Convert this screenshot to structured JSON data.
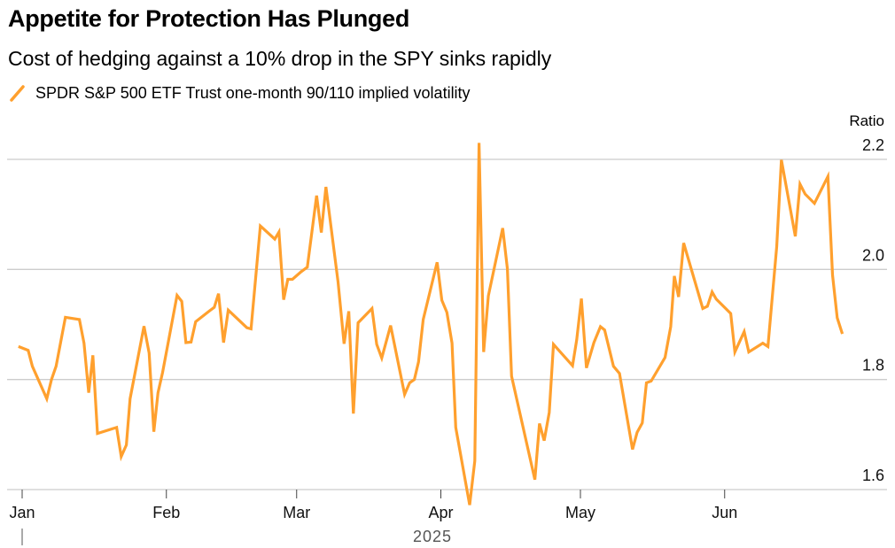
{
  "header": {
    "title": "Appetite for Protection Has Plunged",
    "subtitle": "Cost of hedging against a 10% drop in the SPY sinks rapidly"
  },
  "chart_data": {
    "type": "line",
    "title": "Appetite for Protection Has Plunged",
    "subtitle": "Cost of hedging against a 10% drop in the SPY sinks rapidly",
    "ylabel": "Ratio",
    "xlabel": "2025",
    "ylim": [
      1.6,
      2.2
    ],
    "yticks": [
      1.6,
      1.8,
      2.0,
      2.2
    ],
    "ytick_labels": [
      "1.6",
      "1.8",
      "2.0",
      "2.2"
    ],
    "x_unit": "day of year 2025 (0 = Jan 1)",
    "xticks": [
      {
        "day": 0,
        "label": "Jan"
      },
      {
        "day": 31,
        "label": "Feb"
      },
      {
        "day": 59,
        "label": "Mar"
      },
      {
        "day": 90,
        "label": "Apr"
      },
      {
        "day": 120,
        "label": "May"
      },
      {
        "day": 151,
        "label": "Jun"
      }
    ],
    "year_label": "2025",
    "grid": true,
    "legend_placement": "top-left",
    "series": [
      {
        "name": "SPDR S&P 500 ETF Trust one-month 90/110 implied volatility",
        "color": "#ffa02e",
        "points": [
          [
            -0.8,
            1.86
          ],
          [
            1.3,
            1.853
          ],
          [
            2.2,
            1.824
          ],
          [
            5.3,
            1.765
          ],
          [
            6.3,
            1.8
          ],
          [
            7.3,
            1.824
          ],
          [
            9.3,
            1.913
          ],
          [
            12.3,
            1.909
          ],
          [
            13.3,
            1.866
          ],
          [
            14.3,
            1.776
          ],
          [
            15.2,
            1.844
          ],
          [
            16.2,
            1.702
          ],
          [
            20.3,
            1.713
          ],
          [
            21.3,
            1.66
          ],
          [
            22.4,
            1.681
          ],
          [
            23.2,
            1.765
          ],
          [
            26.2,
            1.897
          ],
          [
            27.3,
            1.848
          ],
          [
            28.3,
            1.705
          ],
          [
            29.2,
            1.776
          ],
          [
            30.2,
            1.813
          ],
          [
            33.3,
            1.953
          ],
          [
            34.3,
            1.942
          ],
          [
            35.2,
            1.867
          ],
          [
            36.3,
            1.868
          ],
          [
            37.3,
            1.905
          ],
          [
            40.3,
            1.925
          ],
          [
            41.3,
            1.931
          ],
          [
            42.2,
            1.956
          ],
          [
            43.3,
            1.867
          ],
          [
            44.3,
            1.926
          ],
          [
            48.3,
            1.894
          ],
          [
            49.2,
            1.892
          ],
          [
            51.2,
            2.079
          ],
          [
            54.3,
            2.055
          ],
          [
            55.2,
            2.068
          ],
          [
            56.2,
            1.945
          ],
          [
            57.1,
            1.982
          ],
          [
            58.1,
            1.982
          ],
          [
            60.0,
            1.996
          ],
          [
            61.3,
            2.004
          ],
          [
            63.3,
            2.134
          ],
          [
            64.3,
            2.067
          ],
          [
            65.3,
            2.15
          ],
          [
            67.9,
            1.977
          ],
          [
            69.2,
            1.865
          ],
          [
            70.2,
            1.924
          ],
          [
            71.2,
            1.738
          ],
          [
            72.2,
            1.903
          ],
          [
            75.2,
            1.929
          ],
          [
            76.2,
            1.864
          ],
          [
            77.3,
            1.839
          ],
          [
            79.2,
            1.898
          ],
          [
            82.2,
            1.773
          ],
          [
            83.3,
            1.794
          ],
          [
            84.3,
            1.8
          ],
          [
            85.2,
            1.832
          ],
          [
            86.2,
            1.909
          ],
          [
            89.2,
            2.013
          ],
          [
            90.2,
            1.944
          ],
          [
            91.3,
            1.922
          ],
          [
            92.4,
            1.866
          ],
          [
            93.2,
            1.713
          ],
          [
            96.2,
            1.572
          ],
          [
            97.3,
            1.652
          ],
          [
            98.2,
            2.23
          ],
          [
            99.2,
            1.85
          ],
          [
            100.2,
            1.952
          ],
          [
            103.3,
            2.075
          ],
          [
            104.3,
            2.001
          ],
          [
            105.2,
            1.806
          ],
          [
            110.2,
            1.618
          ],
          [
            111.2,
            1.72
          ],
          [
            112.2,
            1.689
          ],
          [
            113.3,
            1.74
          ],
          [
            114.2,
            1.864
          ],
          [
            118.3,
            1.825
          ],
          [
            119.2,
            1.872
          ],
          [
            120.2,
            1.947
          ],
          [
            121.3,
            1.821
          ],
          [
            122.9,
            1.867
          ],
          [
            124.3,
            1.896
          ],
          [
            125.2,
            1.89
          ],
          [
            127.1,
            1.824
          ],
          [
            128.4,
            1.811
          ],
          [
            131.2,
            1.673
          ],
          [
            132.2,
            1.704
          ],
          [
            133.3,
            1.721
          ],
          [
            134.2,
            1.794
          ],
          [
            135.2,
            1.797
          ],
          [
            138.2,
            1.84
          ],
          [
            139.4,
            1.896
          ],
          [
            140.2,
            1.988
          ],
          [
            141.1,
            1.95
          ],
          [
            142.2,
            2.048
          ],
          [
            146.3,
            1.929
          ],
          [
            147.3,
            1.933
          ],
          [
            148.3,
            1.959
          ],
          [
            149.2,
            1.946
          ],
          [
            152.3,
            1.92
          ],
          [
            153.2,
            1.85
          ],
          [
            155.2,
            1.887
          ],
          [
            156.2,
            1.85
          ],
          [
            159.2,
            1.866
          ],
          [
            160.3,
            1.86
          ],
          [
            162.2,
            2.041
          ],
          [
            163.2,
            2.199
          ],
          [
            166.2,
            2.06
          ],
          [
            167.2,
            2.155
          ],
          [
            168.3,
            2.137
          ],
          [
            170.3,
            2.12
          ],
          [
            173.2,
            2.169
          ],
          [
            174.2,
            1.99
          ],
          [
            175.2,
            1.912
          ],
          [
            176.3,
            1.883
          ]
        ]
      }
    ]
  }
}
